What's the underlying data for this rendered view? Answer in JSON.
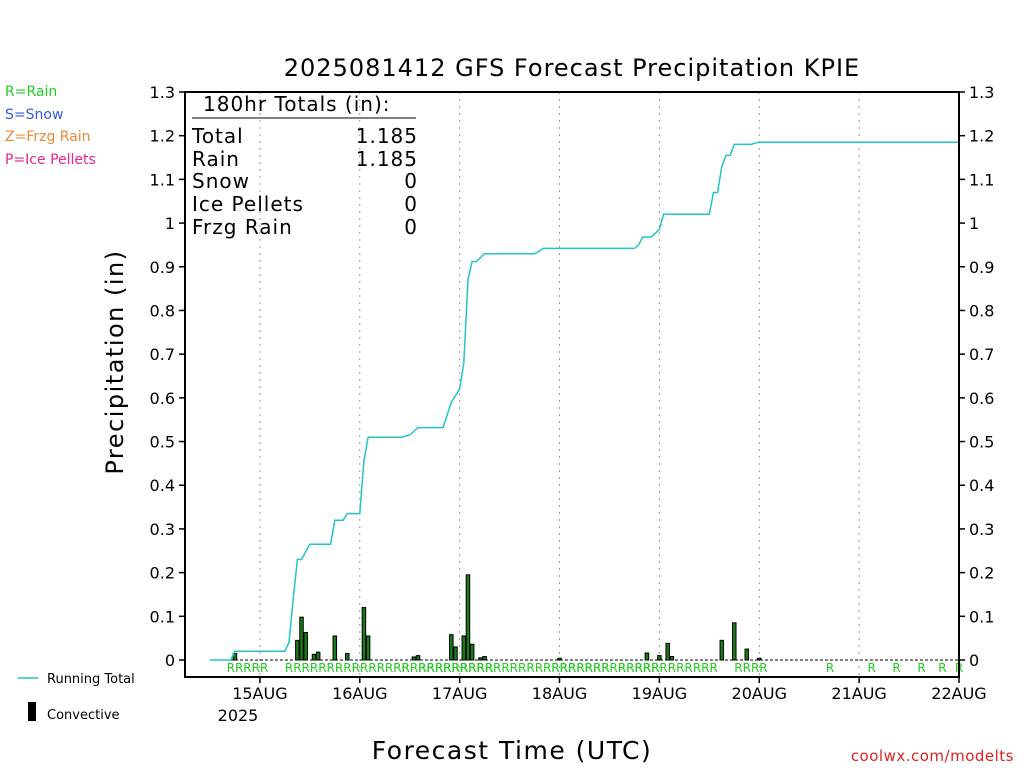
{
  "chart_data": {
    "type": "line",
    "title": "2025081412 GFS Forecast Precipitation KPIE",
    "xlabel": "Forecast Time (UTC)",
    "ylabel": "Precipitation (in)",
    "ylim": [
      0,
      1.3
    ],
    "y_ticks": [
      "0",
      "0.1",
      "0.2",
      "0.3",
      "0.4",
      "0.5",
      "0.6",
      "0.7",
      "0.8",
      "0.9",
      "1",
      "1.1",
      "1.2",
      "1.3"
    ],
    "xlim_hours": [
      -6,
      180
    ],
    "x_ticks": [
      {
        "hour": 12,
        "label": "15AUG"
      },
      {
        "hour": 36,
        "label": "16AUG"
      },
      {
        "hour": 60,
        "label": "17AUG"
      },
      {
        "hour": 84,
        "label": "18AUG"
      },
      {
        "hour": 108,
        "label": "19AUG"
      },
      {
        "hour": 132,
        "label": "20AUG"
      },
      {
        "hour": 156,
        "label": "21AUG"
      },
      {
        "hour": 180,
        "label": "22AUG"
      }
    ],
    "year_label": "2025",
    "grid": "dotted-vertical",
    "legend": {
      "types": [
        {
          "code": "R=Rain",
          "color": "#22cc22"
        },
        {
          "code": "S=Snow",
          "color": "#3355ee"
        },
        {
          "code": "Z=Frzg Rain",
          "color": "#ee8833"
        },
        {
          "code": "P=Ice Pellets",
          "color": "#ee2288"
        }
      ],
      "running_total": "Running Total",
      "convective": "Convective"
    },
    "totals_box": {
      "header": "180hr Totals (in):",
      "rows": [
        {
          "label": "Total",
          "value": "1.185"
        },
        {
          "label": "Rain",
          "value": "1.185"
        },
        {
          "label": "Snow",
          "value": "0"
        },
        {
          "label": "Ice Pellets",
          "value": "0"
        },
        {
          "label": "Frzg Rain",
          "value": "0"
        }
      ]
    },
    "series": [
      {
        "name": "Running Total",
        "color": "#22c4c4",
        "points": [
          [
            0,
            0
          ],
          [
            5,
            0
          ],
          [
            6,
            0.02
          ],
          [
            9,
            0.02
          ],
          [
            18,
            0.02
          ],
          [
            19,
            0.04
          ],
          [
            20,
            0.14
          ],
          [
            21,
            0.23
          ],
          [
            22,
            0.23
          ],
          [
            24,
            0.265
          ],
          [
            27,
            0.265
          ],
          [
            29,
            0.265
          ],
          [
            30,
            0.32
          ],
          [
            32,
            0.32
          ],
          [
            33,
            0.335
          ],
          [
            36,
            0.335
          ],
          [
            37,
            0.455
          ],
          [
            38,
            0.51
          ],
          [
            46,
            0.51
          ],
          [
            48,
            0.515
          ],
          [
            50,
            0.532
          ],
          [
            56,
            0.532
          ],
          [
            58,
            0.59
          ],
          [
            60,
            0.62
          ],
          [
            61,
            0.68
          ],
          [
            62,
            0.87
          ],
          [
            63,
            0.912
          ],
          [
            64,
            0.912
          ],
          [
            66,
            0.93
          ],
          [
            78,
            0.93
          ],
          [
            79,
            0.935
          ],
          [
            80,
            0.942
          ],
          [
            102,
            0.942
          ],
          [
            103,
            0.95
          ],
          [
            104,
            0.968
          ],
          [
            106,
            0.968
          ],
          [
            108,
            0.985
          ],
          [
            109,
            1.02
          ],
          [
            120,
            1.02
          ],
          [
            121,
            1.07
          ],
          [
            122,
            1.07
          ],
          [
            123,
            1.13
          ],
          [
            124,
            1.155
          ],
          [
            125,
            1.155
          ],
          [
            126,
            1.18
          ],
          [
            130,
            1.18
          ],
          [
            132,
            1.185
          ],
          [
            180,
            1.185
          ]
        ]
      },
      {
        "name": "Convective",
        "color": "#000000",
        "bar_fill": "#1a7a1a",
        "bars": [
          [
            6,
            0.015
          ],
          [
            21,
            0.045
          ],
          [
            22,
            0.098
          ],
          [
            23,
            0.063
          ],
          [
            25,
            0.013
          ],
          [
            26,
            0.018
          ],
          [
            30,
            0.055
          ],
          [
            33,
            0.015
          ],
          [
            37,
            0.12
          ],
          [
            38,
            0.055
          ],
          [
            49,
            0.007
          ],
          [
            50,
            0.01
          ],
          [
            58,
            0.058
          ],
          [
            59,
            0.03
          ],
          [
            61,
            0.055
          ],
          [
            62,
            0.195
          ],
          [
            63,
            0.036
          ],
          [
            65,
            0.005
          ],
          [
            66,
            0.008
          ],
          [
            84,
            0.004
          ],
          [
            105,
            0.016
          ],
          [
            108,
            0.01
          ],
          [
            110,
            0.038
          ],
          [
            111,
            0.008
          ],
          [
            123,
            0.045
          ],
          [
            126,
            0.085
          ],
          [
            129,
            0.025
          ],
          [
            132,
            0.004
          ]
        ]
      }
    ],
    "precip_type_marks": [
      {
        "hour": 4,
        "text": "RRRRR"
      },
      {
        "hour": 18,
        "text": "RRRRRRRRRRRRRRRRRRRRRRRRR"
      },
      {
        "hour": 46,
        "text": "R"
      },
      {
        "hour": 50,
        "text": "RRRRRR"
      },
      {
        "hour": 58,
        "text": "RRRRRRRRRRRRRRRRRRR"
      },
      {
        "hour": 82,
        "text": "RRRRRRRRRRRRR"
      },
      {
        "hour": 98,
        "text": "RRRRR"
      },
      {
        "hour": 104,
        "text": "RRRRRRRRR"
      },
      {
        "hour": 126,
        "text": "RRRR"
      },
      {
        "hour": 148,
        "text": "R"
      },
      {
        "hour": 158,
        "text": "R"
      },
      {
        "hour": 164,
        "text": "R"
      },
      {
        "hour": 170,
        "text": "R"
      },
      {
        "hour": 175,
        "text": "R"
      },
      {
        "hour": 180,
        "text": "R"
      }
    ],
    "credit": "coolwx.com/modelts"
  }
}
